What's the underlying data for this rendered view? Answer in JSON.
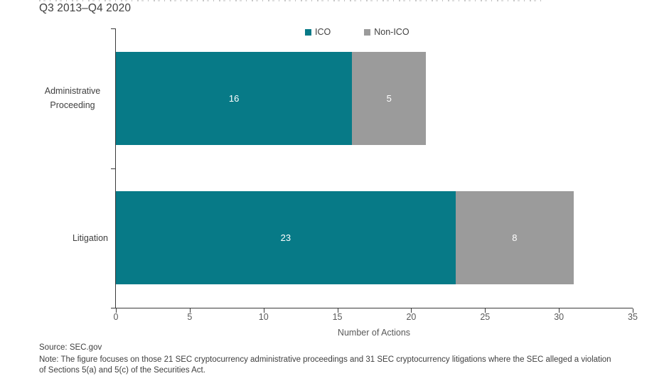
{
  "header": {
    "subtitle": "Q3 2013–Q4 2020"
  },
  "chart_data": {
    "type": "bar",
    "orientation": "horizontal",
    "stacked": true,
    "categories": [
      "Administrative Proceeding",
      "Litigation"
    ],
    "series": [
      {
        "name": "ICO",
        "color": "#077A87",
        "values": [
          16,
          23
        ]
      },
      {
        "name": "Non-ICO",
        "color": "#9B9B9B",
        "values": [
          5,
          8
        ]
      }
    ],
    "totals": [
      21,
      31
    ],
    "xlabel": "Number of Actions",
    "xlim": [
      0,
      35
    ],
    "xticks": [
      0,
      5,
      10,
      15,
      20,
      25,
      30,
      35
    ],
    "legend_position": "top-center",
    "value_label_style": "white-inside",
    "grid": "off"
  },
  "footer": {
    "source": "Source: SEC.gov",
    "note_lines": [
      "Note: The figure focuses on those 21 SEC cryptocurrency administrative proceedings and 31 SEC cryptocurrency litigations where the SEC alleged a violation",
      "of Sections 5(a) and 5(c) of the Securities Act."
    ]
  }
}
